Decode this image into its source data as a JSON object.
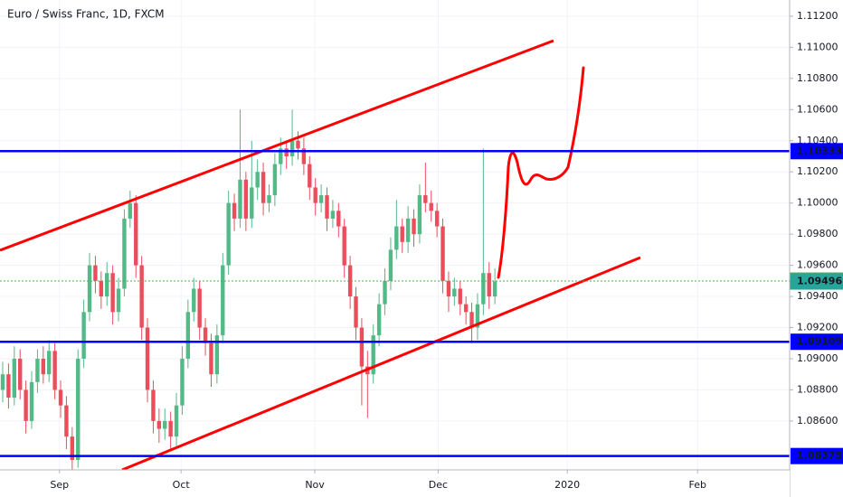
{
  "chart_data": {
    "type": "candlestick",
    "title": "Euro / Swiss Franc, 1D, FXCM",
    "up_color": "#53b987",
    "down_color": "#eb4d5c",
    "grid": true,
    "ohlc": [
      [
        1.088,
        1.0898,
        1.0872,
        1.089
      ],
      [
        1.089,
        1.0897,
        1.0868,
        1.0875
      ],
      [
        1.0875,
        1.0908,
        1.087,
        1.09
      ],
      [
        1.09,
        1.0906,
        1.0874,
        1.088
      ],
      [
        1.088,
        1.0886,
        1.0852,
        1.086
      ],
      [
        1.086,
        1.0892,
        1.0855,
        1.0885
      ],
      [
        1.0885,
        1.0906,
        1.0878,
        1.09
      ],
      [
        1.09,
        1.0908,
        1.0884,
        1.089
      ],
      [
        1.089,
        1.0912,
        1.0885,
        1.0905
      ],
      [
        1.0905,
        1.091,
        1.0874,
        1.088
      ],
      [
        1.088,
        1.0886,
        1.0862,
        1.087
      ],
      [
        1.087,
        1.0876,
        1.0842,
        1.085
      ],
      [
        1.085,
        1.0856,
        1.0826,
        1.0835
      ],
      [
        1.0835,
        1.0906,
        1.083,
        1.09
      ],
      [
        1.09,
        1.0938,
        1.0894,
        1.093
      ],
      [
        1.093,
        1.0968,
        1.0924,
        1.096
      ],
      [
        1.096,
        1.0966,
        1.0942,
        1.095
      ],
      [
        1.095,
        1.0956,
        1.0932,
        1.094
      ],
      [
        1.094,
        1.0962,
        1.0934,
        1.0955
      ],
      [
        1.0955,
        1.096,
        1.0922,
        1.093
      ],
      [
        1.093,
        1.0952,
        1.0924,
        1.0945
      ],
      [
        1.0945,
        1.0996,
        1.094,
        1.099
      ],
      [
        1.099,
        1.1008,
        1.0984,
        1.1
      ],
      [
        1.1,
        1.1005,
        1.0952,
        1.096
      ],
      [
        1.096,
        1.0966,
        1.0912,
        1.092
      ],
      [
        1.092,
        1.0926,
        1.0872,
        1.088
      ],
      [
        1.088,
        1.0886,
        1.0852,
        1.086
      ],
      [
        1.086,
        1.0868,
        1.0846,
        1.0855
      ],
      [
        1.0855,
        1.0868,
        1.0848,
        1.086
      ],
      [
        1.086,
        1.0866,
        1.0842,
        1.085
      ],
      [
        1.085,
        1.0878,
        1.0844,
        1.087
      ],
      [
        1.087,
        1.0908,
        1.0864,
        1.09
      ],
      [
        1.09,
        1.0938,
        1.0894,
        1.093
      ],
      [
        1.093,
        1.0952,
        1.0924,
        1.0945
      ],
      [
        1.0945,
        1.095,
        1.0912,
        1.092
      ],
      [
        1.092,
        1.0926,
        1.0902,
        1.091
      ],
      [
        1.091,
        1.0916,
        1.0882,
        1.089
      ],
      [
        1.089,
        1.0922,
        1.0884,
        1.0915
      ],
      [
        1.0915,
        1.0968,
        1.091,
        1.096
      ],
      [
        1.096,
        1.1008,
        1.0954,
        1.1
      ],
      [
        1.1,
        1.1006,
        1.0982,
        1.099
      ],
      [
        1.099,
        1.106,
        1.0984,
        1.1015
      ],
      [
        1.1015,
        1.102,
        1.0982,
        1.099
      ],
      [
        1.099,
        1.104,
        1.0984,
        1.101
      ],
      [
        1.101,
        1.1028,
        1.1002,
        1.102
      ],
      [
        1.102,
        1.1026,
        1.0992,
        1.1
      ],
      [
        1.1,
        1.1012,
        1.0994,
        1.1005
      ],
      [
        1.1005,
        1.1032,
        1.0998,
        1.1025
      ],
      [
        1.1025,
        1.1042,
        1.1018,
        1.1035
      ],
      [
        1.1035,
        1.104,
        1.1022,
        1.103
      ],
      [
        1.103,
        1.106,
        1.1024,
        1.104
      ],
      [
        1.104,
        1.1046,
        1.1028,
        1.1035
      ],
      [
        1.1035,
        1.1042,
        1.1018,
        1.1025
      ],
      [
        1.1025,
        1.103,
        1.1002,
        1.101
      ],
      [
        1.101,
        1.1016,
        1.0992,
        1.1
      ],
      [
        1.1,
        1.1012,
        1.0994,
        1.1005
      ],
      [
        1.1005,
        1.101,
        1.0982,
        1.099
      ],
      [
        1.099,
        1.1002,
        1.0984,
        1.0995
      ],
      [
        1.0995,
        1.1,
        1.0978,
        1.0985
      ],
      [
        1.0985,
        1.099,
        1.0952,
        1.096
      ],
      [
        1.096,
        1.0966,
        1.0932,
        1.094
      ],
      [
        1.094,
        1.0946,
        1.0912,
        1.092
      ],
      [
        1.092,
        1.0926,
        1.087,
        1.0895
      ],
      [
        1.0895,
        1.0905,
        1.0862,
        1.089
      ],
      [
        1.089,
        1.0922,
        1.0884,
        1.0915
      ],
      [
        1.0915,
        1.0942,
        1.0908,
        1.0935
      ],
      [
        1.0935,
        1.0958,
        1.0928,
        1.095
      ],
      [
        1.095,
        1.0978,
        1.0944,
        1.097
      ],
      [
        1.097,
        1.1002,
        1.0964,
        1.0985
      ],
      [
        1.0985,
        1.099,
        1.0968,
        1.0975
      ],
      [
        1.0975,
        1.0998,
        1.0968,
        1.099
      ],
      [
        1.099,
        1.0996,
        1.0972,
        1.098
      ],
      [
        1.098,
        1.1012,
        1.0974,
        1.1005
      ],
      [
        1.1005,
        1.1026,
        1.0994,
        1.1
      ],
      [
        1.1,
        1.1008,
        1.0988,
        1.0995
      ],
      [
        1.0995,
        1.1,
        1.0978,
        1.0985
      ],
      [
        1.0985,
        1.099,
        1.0942,
        1.095
      ],
      [
        1.095,
        1.0956,
        1.093,
        1.094
      ],
      [
        1.094,
        1.0952,
        1.0934,
        1.0945
      ],
      [
        1.0945,
        1.095,
        1.0928,
        1.0935
      ],
      [
        1.0935,
        1.094,
        1.0922,
        1.093
      ],
      [
        1.093,
        1.0936,
        1.091,
        1.092
      ],
      [
        1.092,
        1.0942,
        1.0912,
        1.0935
      ],
      [
        1.0935,
        1.1035,
        1.0928,
        1.0955
      ],
      [
        1.0955,
        1.0962,
        1.0932,
        1.094
      ],
      [
        1.094,
        1.0958,
        1.0935,
        1.09496
      ]
    ],
    "xlim": [
      -0.47,
      135.9
    ],
    "xticks": [
      {
        "value": 9.8,
        "label": "Sep"
      },
      {
        "value": 30.8,
        "label": "Oct"
      },
      {
        "value": 53.9,
        "label": "Nov"
      },
      {
        "value": 75.2,
        "label": "Dec"
      },
      {
        "value": 97.5,
        "label": "2020"
      },
      {
        "value": 120,
        "label": "Feb"
      }
    ],
    "ylim": [
      1.08286,
      1.11304
    ],
    "yticks": [
      {
        "value": 1.112,
        "label": "1.11200"
      },
      {
        "value": 1.11,
        "label": "1.11000"
      },
      {
        "value": 1.108,
        "label": "1.10800"
      },
      {
        "value": 1.106,
        "label": "1.10600"
      },
      {
        "value": 1.104,
        "label": "1.10400"
      },
      {
        "value": 1.102,
        "label": "1.10200"
      },
      {
        "value": 1.1,
        "label": "1.10000"
      },
      {
        "value": 1.098,
        "label": "1.09800"
      },
      {
        "value": 1.096,
        "label": "1.09600"
      },
      {
        "value": 1.094,
        "label": "1.09400"
      },
      {
        "value": 1.092,
        "label": "1.09200"
      },
      {
        "value": 1.09,
        "label": "1.09000"
      },
      {
        "value": 1.088,
        "label": "1.08800"
      },
      {
        "value": 1.086,
        "label": "1.08600"
      }
    ],
    "price_lines": [
      {
        "value": 1.10333,
        "label": "1.10333",
        "color": "#0000ff",
        "style": "solid"
      },
      {
        "value": 1.09499,
        "label": "1.09499",
        "color": "#4caf50",
        "style": "dashed"
      },
      {
        "value": 1.09496,
        "label": "1.09496",
        "color": "#26a69a",
        "style": "none"
      },
      {
        "value": 1.09109,
        "label": "1.09109",
        "color": "#0000ff",
        "style": "solid"
      },
      {
        "value": 1.08375,
        "label": "1.08375",
        "color": "#0000ff",
        "style": "solid"
      }
    ]
  }
}
